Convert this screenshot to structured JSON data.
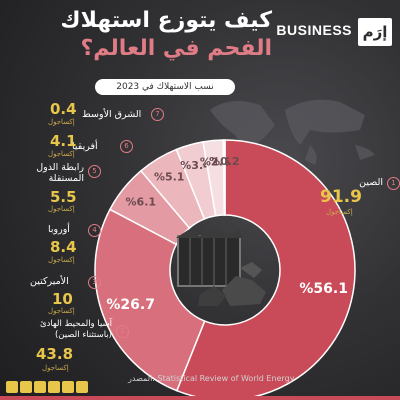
{
  "header": {
    "title_line1": "كيف يتوزع استهلاك",
    "title_line2": "الفحم في العالم؟",
    "brand_logo": "إرَم",
    "brand_name": "BUSINESS",
    "subtitle": "نسب الاستهلاك في 2023"
  },
  "labels": [
    {
      "num": "1",
      "name": "الصين",
      "value": "91.9",
      "unit": "إكساجول"
    },
    {
      "num": "2",
      "name": "آسيا والمحيط الهادئ\n(باستثناء الصين)",
      "value": "43.8",
      "unit": "إكساجول"
    },
    {
      "num": "3",
      "name": "الأميركتين",
      "value": "10",
      "unit": "إكساجول"
    },
    {
      "num": "4",
      "name": "أوروبا",
      "value": "8.4",
      "unit": "إكساجول"
    },
    {
      "num": "5",
      "name": "رابطة الدول\nالمستقلة",
      "value": "5.5",
      "unit": "إكساجول"
    },
    {
      "num": "6",
      "name": "أفريقيا",
      "value": "4.1",
      "unit": "إكساجول"
    },
    {
      "num": "7",
      "name": "الشرق الأوسط",
      "value": "0.4",
      "unit": "إكساجول"
    }
  ],
  "source": "المصدر: Statistical Review of World Energy",
  "chart_data": {
    "type": "pie",
    "categories": [
      "الصين",
      "آسيا والمحيط الهادئ (باستثناء الصين)",
      "الأميركتين",
      "أوروبا",
      "رابطة الدول المستقلة",
      "أفريقيا",
      "الشرق الأوسط"
    ],
    "values": [
      56.1,
      26.7,
      6.1,
      5.1,
      3.4,
      2.5,
      0.2
    ],
    "value_labels": [
      "%56.1",
      "%26.7",
      "%6.1",
      "%5.1",
      "%3.4",
      "%2.5",
      "%0.2"
    ],
    "colors": [
      "#c94a58",
      "#d7707c",
      "#e39aa3",
      "#ebb6bc",
      "#f1cdd1",
      "#f6dfe2",
      "#faf0f1"
    ],
    "title": "كيف يتوزع استهلاك الفحم في العالم؟",
    "subtitle": "نسب الاستهلاك في 2023"
  }
}
